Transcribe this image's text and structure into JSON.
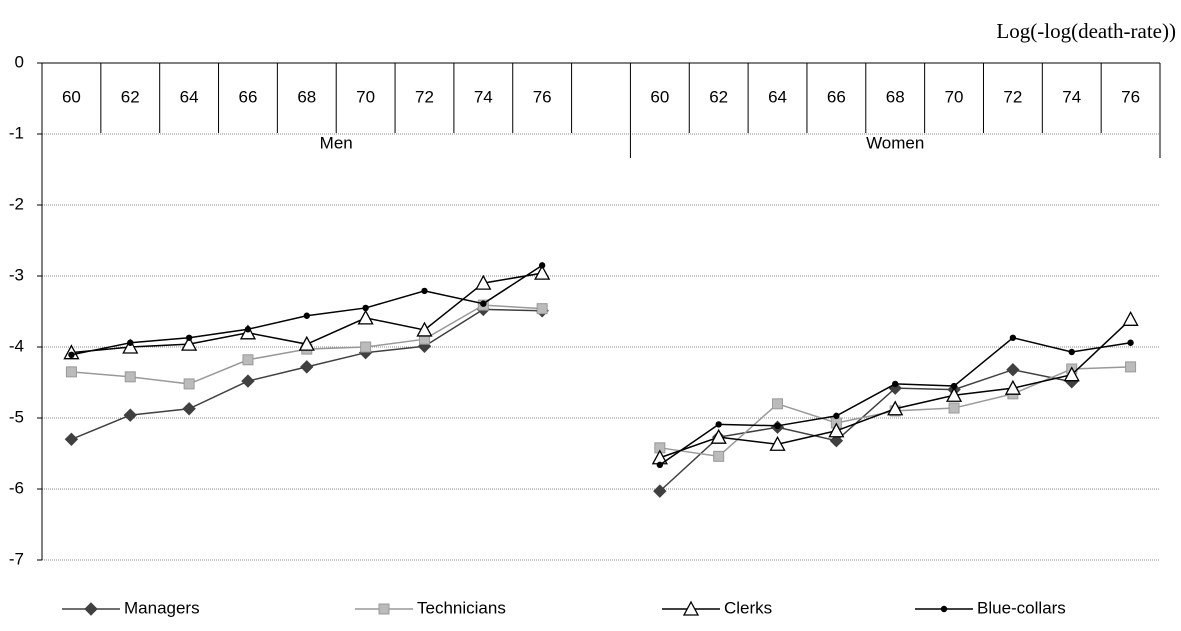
{
  "chart_data": {
    "type": "line",
    "y_axis_title": "Log(-log(death-rate))",
    "categories": [
      "60",
      "62",
      "64",
      "66",
      "68",
      "70",
      "72",
      "74",
      "76",
      null,
      "60",
      "62",
      "64",
      "66",
      "68",
      "70",
      "72",
      "74",
      "76"
    ],
    "groups": [
      "Men",
      "Women"
    ],
    "ylim": [
      -7,
      0
    ],
    "yticks": [
      0,
      -1,
      -2,
      -3,
      -4,
      -5,
      -6,
      -7
    ],
    "grid": true,
    "series": [
      {
        "name": "Managers",
        "color": "#404040",
        "marker": "diamond",
        "values": [
          -5.3,
          -4.96,
          -4.87,
          -4.48,
          -4.28,
          -4.08,
          -3.99,
          -3.47,
          -3.49,
          null,
          -6.03,
          -5.27,
          -5.13,
          -5.32,
          -4.58,
          -4.6,
          -4.32,
          -4.49,
          null
        ]
      },
      {
        "name": "Technicians",
        "color": "#999999",
        "marker": "square",
        "values": [
          -4.35,
          -4.42,
          -4.52,
          -4.18,
          -4.03,
          -4.0,
          -3.89,
          -3.41,
          -3.46,
          null,
          -5.42,
          -5.54,
          -4.8,
          -5.07,
          -4.9,
          -4.86,
          -4.66,
          -4.31,
          -4.28
        ]
      },
      {
        "name": "Clerks",
        "color": "#000000",
        "marker": "triangle",
        "values": [
          -4.08,
          -4.0,
          -3.96,
          -3.8,
          -3.96,
          -3.59,
          -3.76,
          -3.1,
          -2.96,
          null,
          -5.56,
          -5.27,
          -5.37,
          -5.18,
          -4.87,
          -4.68,
          -4.58,
          -4.39,
          -3.61
        ]
      },
      {
        "name": "Blue-collars",
        "color": "#000000",
        "marker": "dot",
        "values": [
          -4.11,
          -3.94,
          -3.87,
          -3.75,
          -3.56,
          -3.45,
          -3.21,
          -3.39,
          -2.85,
          null,
          -5.66,
          -5.09,
          -5.11,
          -4.97,
          -4.52,
          -4.55,
          -3.87,
          -4.07,
          -3.94
        ]
      }
    ]
  }
}
